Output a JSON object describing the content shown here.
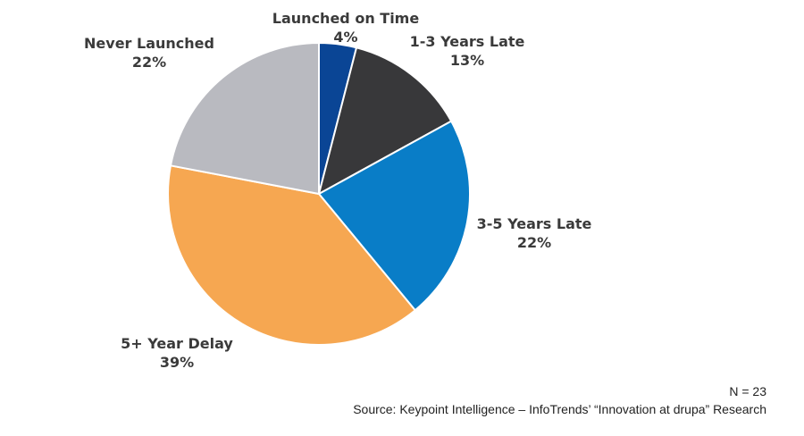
{
  "chart_data": {
    "type": "pie",
    "slices": [
      {
        "label": "Launched on Time",
        "value": 4,
        "display": "4%",
        "color": "#0a4595"
      },
      {
        "label": "1-3 Years Late",
        "value": 13,
        "display": "13%",
        "color": "#38383a"
      },
      {
        "label": "3-5 Years Late",
        "value": 22,
        "display": "22%",
        "color": "#097dc7"
      },
      {
        "label": "5+ Year Delay",
        "value": 39,
        "display": "39%",
        "color": "#f6a751"
      },
      {
        "label": "Never Launched",
        "value": 22,
        "display": "22%",
        "color": "#b9bac0"
      }
    ],
    "start_angle_deg": 0,
    "direction": "clockwise",
    "slice_border_color": "#ffffff"
  },
  "footer": {
    "sample_size": "N = 23",
    "source": "Source: Keypoint Intelligence – InfoTrends’ “Innovation at drupa” Research"
  }
}
